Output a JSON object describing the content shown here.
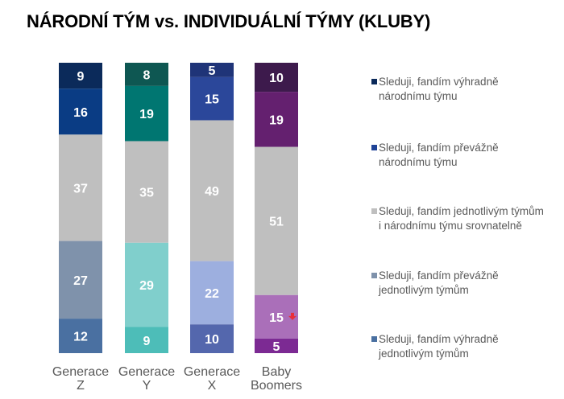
{
  "chart_data": {
    "type": "bar",
    "stacked": true,
    "title": "NÁRODNÍ TÝM vs. INDIVIDUÁLNÍ TÝMY (KLUBY)",
    "categories": [
      [
        "Generace",
        "Z"
      ],
      [
        "Generace",
        "Y"
      ],
      [
        "Generace",
        "X"
      ],
      [
        "Baby",
        "Boomers"
      ]
    ],
    "series": [
      {
        "name": "Sleduji, fandím výhradně národnímu týmu",
        "values": [
          9,
          8,
          5,
          10
        ],
        "legend_color": "#0b2a5a",
        "colors": [
          "#0b2a5a",
          "#0e5752",
          "#1f3478",
          "#3d1a4c"
        ]
      },
      {
        "name": "Sleduji, fandím převážně národnímu týmu",
        "values": [
          16,
          19,
          15,
          19
        ],
        "legend_color": "#1f4397",
        "colors": [
          "#0a3c84",
          "#007671",
          "#2b479a",
          "#64206f"
        ]
      },
      {
        "name": "Sleduji, fandím jednotlivým týmům i národnímu týmu srovnatelně",
        "values": [
          37,
          35,
          49,
          51
        ],
        "legend_color": "#bfbfbf",
        "colors": [
          "#bfbfbf",
          "#bfbfbf",
          "#bfbfbf",
          "#bfbfbf"
        ]
      },
      {
        "name": "Sleduji, fandím převážně jednotlivým týmům",
        "values": [
          27,
          29,
          22,
          15
        ],
        "legend_color": "#7f92ab",
        "colors": [
          "#7f92ab",
          "#80cfcc",
          "#9dafdf",
          "#aa6fb9"
        ]
      },
      {
        "name": "Sleduji, fandím výhradně jednotlivým týmům",
        "values": [
          12,
          9,
          10,
          5
        ],
        "legend_color": "#4a70a1",
        "colors": [
          "#4a70a1",
          "#4dbdb8",
          "#5467ad",
          "#7c2a93"
        ]
      }
    ],
    "annotations": [
      {
        "category": 3,
        "series": 3,
        "icon": "down-arrow-icon",
        "color": "#e8303a"
      }
    ],
    "legend_position": "right",
    "grid": false,
    "label_color": "#ffffff"
  }
}
